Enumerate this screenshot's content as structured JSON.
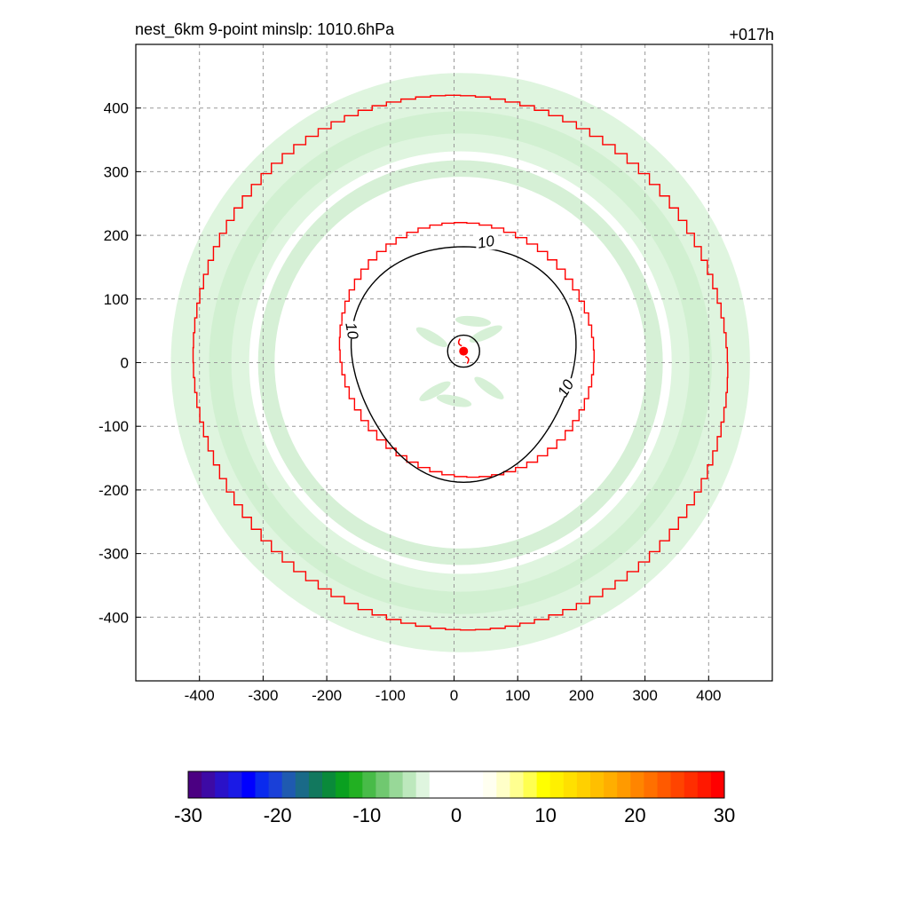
{
  "title_left": "nest_6km  9-point minslp: 1010.6hPa",
  "title_right": "+017h",
  "chart_data": {
    "type": "contour",
    "xlim": [
      -500,
      500
    ],
    "ylim": [
      -500,
      500
    ],
    "xticks": [
      -400,
      -300,
      -200,
      -100,
      0,
      100,
      200,
      300,
      400
    ],
    "yticks": [
      -400,
      -300,
      -200,
      -100,
      0,
      100,
      200,
      300,
      400
    ],
    "grid": true,
    "storm_center": [
      15,
      18
    ],
    "contour_label": "10",
    "contour_radius": 180,
    "inner_box_halfwidth": 190,
    "outer_box_halfwidth": 400,
    "colorbar": {
      "min": -30,
      "max": 30,
      "ticks": [
        -30,
        -20,
        -10,
        0,
        10,
        20,
        30
      ],
      "neg_colors": [
        "#4b0082",
        "#3d0aa5",
        "#2a12c8",
        "#1a1ae6",
        "#0000ff",
        "#0a2aee",
        "#1a40d8",
        "#1f5ab0",
        "#1a6a88",
        "#12785e",
        "#0a8a3a",
        "#0aa020",
        "#22b022",
        "#48bb48",
        "#70c870",
        "#98d898",
        "#bde8bd",
        "#dff5df"
      ],
      "pos_colors": [
        "#fffff0",
        "#ffffc8",
        "#ffff90",
        "#ffff50",
        "#ffff00",
        "#fff000",
        "#ffe000",
        "#ffd000",
        "#ffbf00",
        "#ffae00",
        "#ff9a00",
        "#ff8500",
        "#ff7000",
        "#ff5a00",
        "#ff4400",
        "#ff2e00",
        "#ff1800",
        "#ff0000"
      ]
    }
  }
}
